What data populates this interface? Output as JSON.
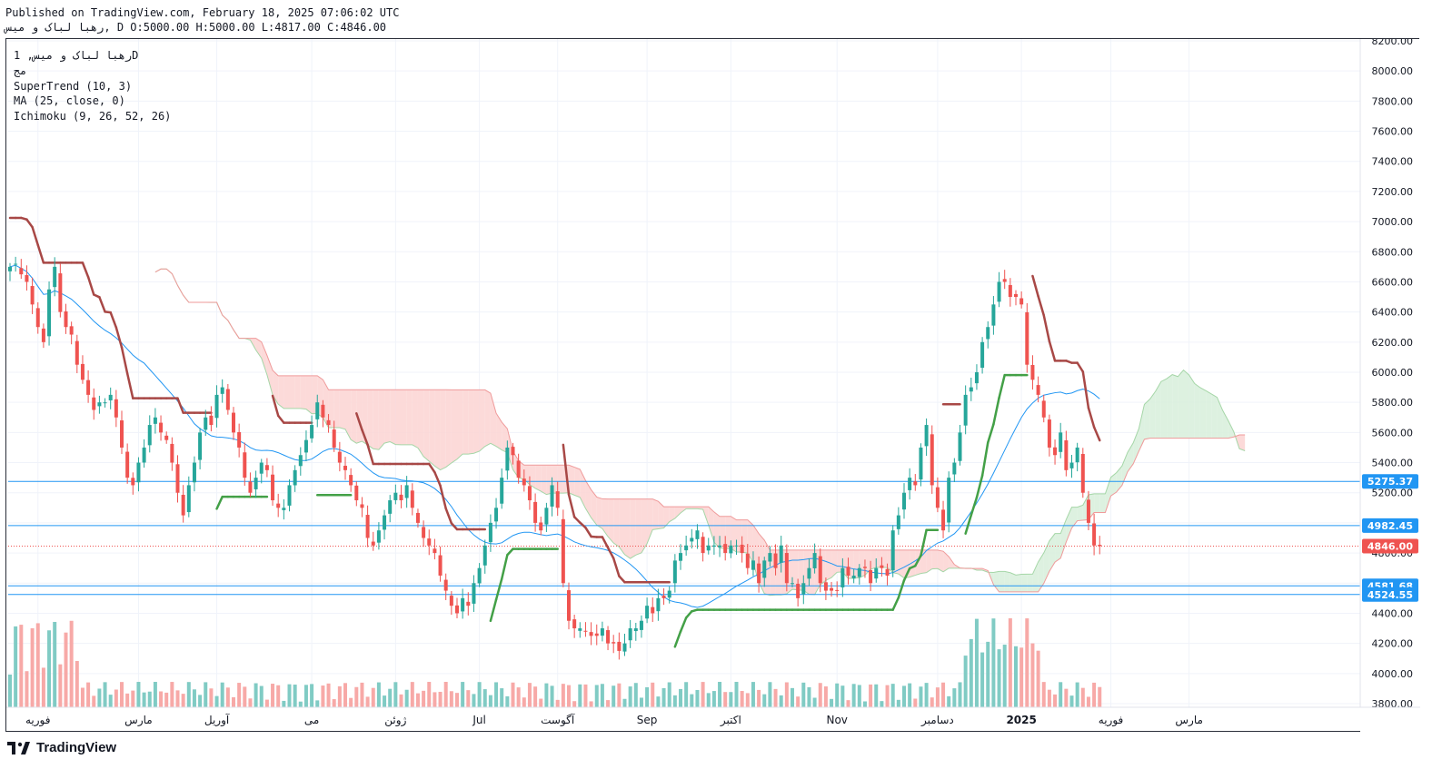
{
  "header": {
    "published_line": "Published on TradingView.com, February 18, 2025 07:06:02 UTC",
    "ohlc_line": "رهبا لباک و میس, D O:5000.00 H:5000.00 L:4817.00 C:4846.00"
  },
  "legend": {
    "symbol_line": "رهبا لباک و میس, 1D",
    "exchange": "مج",
    "indicators": [
      "SuperTrend (10, 3)",
      "MA (25, close, 0)",
      "Ichimoku (9, 26, 52, 26)"
    ]
  },
  "footer": {
    "brand": "TradingView"
  },
  "colors": {
    "up": "#26a69a",
    "down": "#ef5350",
    "supertrend_up": "#43a047",
    "supertrend_down": "#a84846",
    "ma": "#2196f3",
    "cloud_bear": "#fbd4d2",
    "cloud_bull": "#d7efdb",
    "level_line": "#2196f3",
    "price_line": "#ef5350"
  },
  "chart_data": {
    "type": "candlestick",
    "y_axis": {
      "min": 3800,
      "max": 8200,
      "ticks": [
        3800,
        4000,
        4200,
        4400,
        4600,
        4800,
        5000,
        5200,
        5400,
        5600,
        5800,
        6000,
        6200,
        6400,
        6600,
        6800,
        7000,
        7200,
        7400,
        7600,
        7800,
        8000,
        8200
      ],
      "tick_labels": [
        "3800.00",
        "4000.00",
        "4200.00",
        "4400.00",
        "4600.00",
        "4800.00",
        "5000.00",
        "5200.00",
        "5400.00",
        "5600.00",
        "5800.00",
        "6000.00",
        "6200.00",
        "6400.00",
        "6600.00",
        "6800.00",
        "7000.00",
        "7200.00",
        "7400.00",
        "7600.00",
        "7800.00",
        "8000.00",
        "8200.00"
      ]
    },
    "x_axis": {
      "labels": [
        {
          "text": "فوریه",
          "bar": 5
        },
        {
          "text": "مارس",
          "bar": 23
        },
        {
          "text": "آوریل",
          "bar": 37
        },
        {
          "text": "می",
          "bar": 54
        },
        {
          "text": "ژوئن",
          "bar": 69
        },
        {
          "text": "Jul",
          "bar": 84
        },
        {
          "text": "آگوست",
          "bar": 98
        },
        {
          "text": "Sep",
          "bar": 114
        },
        {
          "text": "اکتبر",
          "bar": 129
        },
        {
          "text": "Nov",
          "bar": 148
        },
        {
          "text": "دسامبر",
          "bar": 166
        },
        {
          "text": "2025",
          "bar": 181,
          "bold": true
        },
        {
          "text": "فوریه",
          "bar": 197
        },
        {
          "text": "مارس",
          "bar": 211
        }
      ]
    },
    "price_labels": [
      {
        "value": 5275.37,
        "text": "5275.37",
        "color": "#2196f3"
      },
      {
        "value": 4982.45,
        "text": "4982.45",
        "color": "#2196f3"
      },
      {
        "value": 4846.0,
        "text": "4846.00",
        "color": "#ef5350"
      },
      {
        "value": 4581.68,
        "text": "4581.68",
        "color": "#2196f3"
      },
      {
        "value": 4524.55,
        "text": "4524.55",
        "color": "#2196f3"
      }
    ],
    "horizontal_levels": [
      5275.37,
      4982.45,
      4581.68,
      4524.55
    ],
    "last_close": 4846.0,
    "close": [
      6700,
      6720,
      6650,
      6600,
      6450,
      6300,
      6200,
      6550,
      6700,
      6400,
      6300,
      6250,
      6050,
      5950,
      5850,
      5750,
      5800,
      5800,
      5850,
      5700,
      5500,
      5300,
      5250,
      5400,
      5500,
      5650,
      5700,
      5600,
      5550,
      5400,
      5200,
      5050,
      5250,
      5400,
      5600,
      5700,
      5650,
      5850,
      5900,
      5750,
      5600,
      5500,
      5300,
      5200,
      5300,
      5400,
      5350,
      5150,
      5100,
      5100,
      5250,
      5350,
      5450,
      5550,
      5650,
      5800,
      5700,
      5650,
      5500,
      5400,
      5350,
      5250,
      5150,
      5100,
      4900,
      4850,
      4950,
      5050,
      5150,
      5200,
      5150,
      5250,
      5100,
      5000,
      4900,
      4850,
      4800,
      4650,
      4550,
      4450,
      4400,
      4500,
      4450,
      4600,
      4700,
      4850,
      5000,
      5100,
      5300,
      5500,
      5450,
      5300,
      5250,
      5150,
      5000,
      4950,
      5100,
      5250,
      5100,
      4600,
      4350,
      4300,
      4300,
      4280,
      4250,
      4250,
      4300,
      4200,
      4200,
      4150,
      4200,
      4300,
      4300,
      4350,
      4450,
      4400,
      4500,
      4500,
      4550,
      4750,
      4800,
      4850,
      4900,
      4950,
      4800,
      4850,
      4850,
      4850,
      4800,
      4850,
      4850,
      4800,
      4700,
      4750,
      4600,
      4750,
      4800,
      4700,
      4850,
      4600,
      4600,
      4500,
      4600,
      4700,
      4800,
      4600,
      4550,
      4550,
      4550,
      4700,
      4650,
      4650,
      4700,
      4700,
      4600,
      4700,
      4700,
      4650,
      4950,
      5050,
      5200,
      5300,
      5250,
      5500,
      5650,
      5250,
      5100,
      4950,
      5300,
      5400,
      5600,
      5850,
      5900,
      6000,
      6200,
      6300,
      6450,
      6600,
      6600,
      6500,
      6500,
      6450,
      6050,
      5950,
      5850,
      5700,
      5500,
      5450,
      5600,
      5350,
      5400,
      5500,
      5200,
      5000,
      4850,
      4846
    ],
    "series": [
      {
        "name": "SuperTrend (10, 3)"
      },
      {
        "name": "MA (25, close, 0)"
      },
      {
        "name": "Ichimoku (9, 26, 52, 26)"
      }
    ]
  }
}
